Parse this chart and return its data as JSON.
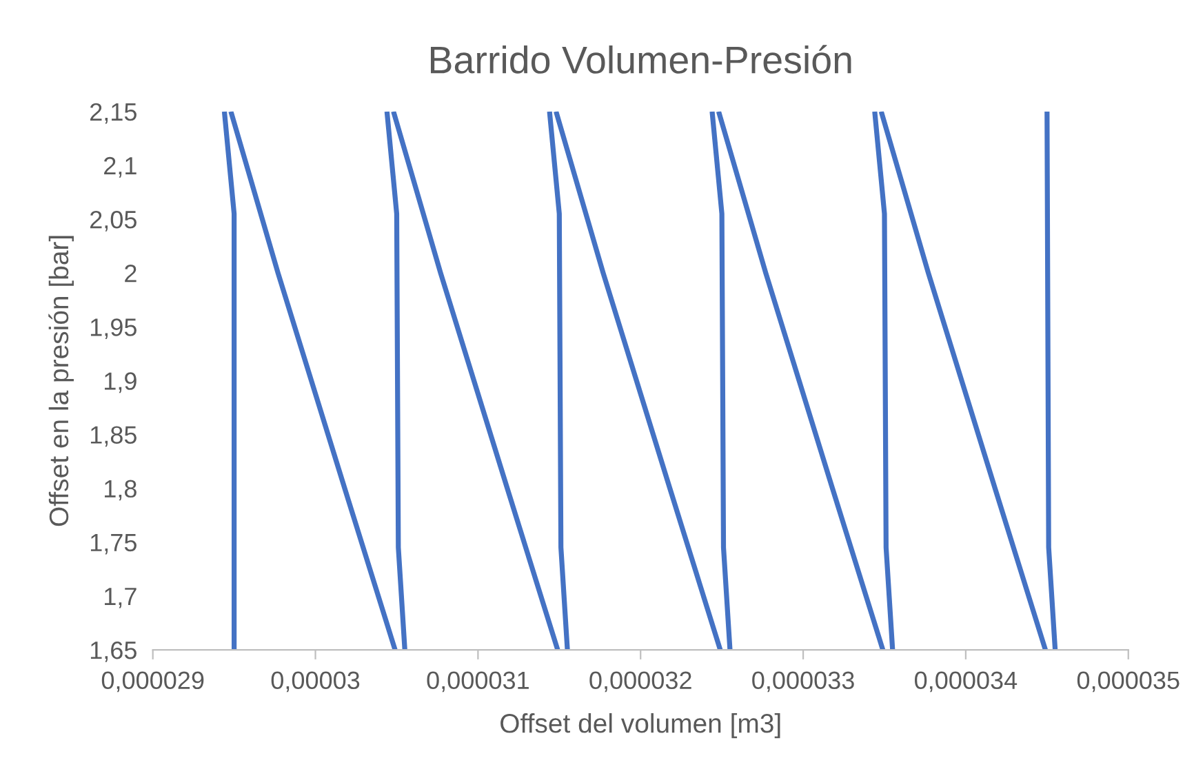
{
  "chart_data": {
    "type": "line",
    "title": "Barrido Volumen-Presión",
    "xlabel": "Offset del volumen [m3]",
    "ylabel": "Offset en la presión [bar]",
    "series": [
      {
        "color": "#4472c4",
        "x": [
          2.95e-05,
          2.95e-05,
          2.944e-05
        ],
        "values": [
          1.65,
          2.055,
          2.15
        ]
      },
      {
        "color": "#4472c4",
        "x": [
          2.948e-05,
          2.977e-05,
          3.018e-05,
          3.049e-05
        ],
        "values": [
          2.15,
          2.0,
          1.8,
          1.65
        ]
      },
      {
        "color": "#4472c4",
        "x": [
          3.055e-05,
          3.051e-05,
          3.05e-05,
          3.044e-05
        ],
        "values": [
          1.65,
          1.745,
          2.055,
          2.15
        ]
      },
      {
        "color": "#4472c4",
        "x": [
          3.048e-05,
          3.077e-05,
          3.118e-05,
          3.149e-05
        ],
        "values": [
          2.15,
          2.0,
          1.8,
          1.65
        ]
      },
      {
        "color": "#4472c4",
        "x": [
          3.155e-05,
          3.151e-05,
          3.15e-05,
          3.144e-05
        ],
        "values": [
          1.65,
          1.745,
          2.055,
          2.15
        ]
      },
      {
        "color": "#4472c4",
        "x": [
          3.148e-05,
          3.177e-05,
          3.218e-05,
          3.249e-05
        ],
        "values": [
          2.15,
          2.0,
          1.8,
          1.65
        ]
      },
      {
        "color": "#4472c4",
        "x": [
          3.255e-05,
          3.251e-05,
          3.25e-05,
          3.244e-05
        ],
        "values": [
          1.65,
          1.745,
          2.055,
          2.15
        ]
      },
      {
        "color": "#4472c4",
        "x": [
          3.248e-05,
          3.277e-05,
          3.318e-05,
          3.349e-05
        ],
        "values": [
          2.15,
          2.0,
          1.8,
          1.65
        ]
      },
      {
        "color": "#4472c4",
        "x": [
          3.355e-05,
          3.351e-05,
          3.35e-05,
          3.344e-05
        ],
        "values": [
          1.65,
          1.745,
          2.055,
          2.15
        ]
      },
      {
        "color": "#4472c4",
        "x": [
          3.348e-05,
          3.377e-05,
          3.418e-05,
          3.449e-05
        ],
        "values": [
          2.15,
          2.0,
          1.8,
          1.65
        ]
      },
      {
        "color": "#4472c4",
        "x": [
          3.455e-05,
          3.451e-05,
          3.45e-05
        ],
        "values": [
          1.65,
          1.745,
          2.15
        ]
      }
    ],
    "xlim": [
      2.9e-05,
      3.5e-05
    ],
    "xticks": [
      {
        "value": 2.9e-05,
        "label": "0,000029"
      },
      {
        "value": 3e-05,
        "label": "0,00003"
      },
      {
        "value": 3.1e-05,
        "label": "0,000031"
      },
      {
        "value": 3.2e-05,
        "label": "0,000032"
      },
      {
        "value": 3.3e-05,
        "label": "0,000033"
      },
      {
        "value": 3.4e-05,
        "label": "0,000034"
      },
      {
        "value": 3.5e-05,
        "label": "0,000035"
      }
    ],
    "ylim": [
      1.65,
      2.15
    ],
    "yticks": [
      {
        "value": 1.65,
        "label": "1,65"
      },
      {
        "value": 1.7,
        "label": "1,7"
      },
      {
        "value": 1.75,
        "label": "1,75"
      },
      {
        "value": 1.8,
        "label": "1,8"
      },
      {
        "value": 1.85,
        "label": "1,85"
      },
      {
        "value": 1.9,
        "label": "1,9"
      },
      {
        "value": 1.95,
        "label": "1,95"
      },
      {
        "value": 2.0,
        "label": "2"
      },
      {
        "value": 2.05,
        "label": "2,05"
      },
      {
        "value": 2.1,
        "label": "2,1"
      },
      {
        "value": 2.15,
        "label": "2,15"
      }
    ],
    "grid": false,
    "legend": false,
    "marker": "none",
    "line_style": "solid"
  }
}
